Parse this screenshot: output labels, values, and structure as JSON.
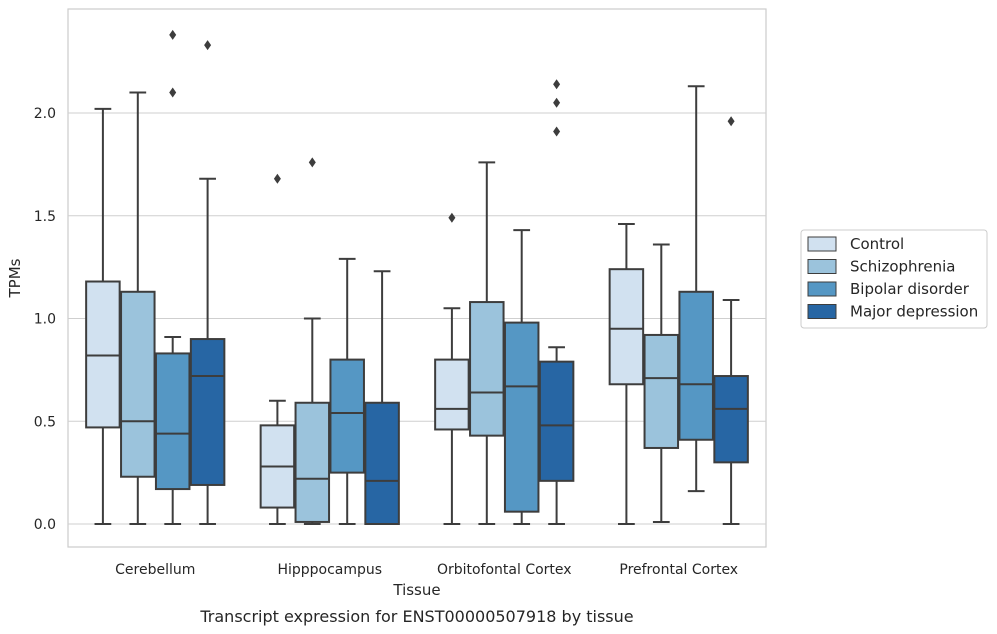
{
  "chart_data": {
    "type": "boxplot",
    "title": "",
    "caption": "Transcript expression for ENST00000507918 by tissue",
    "xlabel": "Tissue",
    "ylabel": "TPMs",
    "ylim": [
      -0.12,
      2.51
    ],
    "yticks": [
      0.0,
      0.5,
      1.0,
      1.5,
      2.0
    ],
    "ytick_labels": [
      "0.0",
      "0.5",
      "1.0",
      "1.5",
      "2.0"
    ],
    "grid": "horizontal",
    "legend_position": "right",
    "categories": [
      "Cerebellum",
      "Hipppocampus",
      "Orbitofontal Cortex",
      "Prefrontal Cortex"
    ],
    "series": [
      {
        "name": "Control",
        "color": "#d1e1f0",
        "boxes": [
          {
            "whisker_low": 0.0,
            "q1": 0.47,
            "median": 0.82,
            "q3": 1.18,
            "whisker_high": 2.02,
            "outliers": []
          },
          {
            "whisker_low": 0.0,
            "q1": 0.08,
            "median": 0.28,
            "q3": 0.48,
            "whisker_high": 0.6,
            "outliers": [
              1.68
            ]
          },
          {
            "whisker_low": 0.0,
            "q1": 0.46,
            "median": 0.56,
            "q3": 0.8,
            "whisker_high": 1.05,
            "outliers": [
              1.49
            ]
          },
          {
            "whisker_low": 0.0,
            "q1": 0.68,
            "median": 0.95,
            "q3": 1.24,
            "whisker_high": 1.46,
            "outliers": []
          }
        ]
      },
      {
        "name": "Schizophrenia",
        "color": "#9bc3dc",
        "boxes": [
          {
            "whisker_low": 0.0,
            "q1": 0.23,
            "median": 0.5,
            "q3": 1.13,
            "whisker_high": 2.1,
            "outliers": []
          },
          {
            "whisker_low": 0.0,
            "q1": 0.01,
            "median": 0.22,
            "q3": 0.59,
            "whisker_high": 1.0,
            "outliers": [
              1.76
            ]
          },
          {
            "whisker_low": 0.0,
            "q1": 0.43,
            "median": 0.64,
            "q3": 1.08,
            "whisker_high": 1.76,
            "outliers": []
          },
          {
            "whisker_low": 0.01,
            "q1": 0.37,
            "median": 0.71,
            "q3": 0.92,
            "whisker_high": 1.36,
            "outliers": []
          }
        ]
      },
      {
        "name": "Bipolar disorder",
        "color": "#5597c4",
        "boxes": [
          {
            "whisker_low": 0.0,
            "q1": 0.17,
            "median": 0.44,
            "q3": 0.83,
            "whisker_high": 0.91,
            "outliers": [
              2.1,
              2.38
            ]
          },
          {
            "whisker_low": 0.0,
            "q1": 0.25,
            "median": 0.54,
            "q3": 0.8,
            "whisker_high": 1.29,
            "outliers": []
          },
          {
            "whisker_low": 0.0,
            "q1": 0.06,
            "median": 0.67,
            "q3": 0.98,
            "whisker_high": 1.43,
            "outliers": []
          },
          {
            "whisker_low": 0.16,
            "q1": 0.41,
            "median": 0.68,
            "q3": 1.13,
            "whisker_high": 2.13,
            "outliers": []
          }
        ]
      },
      {
        "name": "Major depression",
        "color": "#2766a4",
        "boxes": [
          {
            "whisker_low": 0.0,
            "q1": 0.19,
            "median": 0.72,
            "q3": 0.9,
            "whisker_high": 1.68,
            "outliers": [
              2.33
            ]
          },
          {
            "whisker_low": 0.0,
            "q1": 0.0,
            "median": 0.21,
            "q3": 0.59,
            "whisker_high": 1.23,
            "outliers": []
          },
          {
            "whisker_low": 0.0,
            "q1": 0.21,
            "median": 0.48,
            "q3": 0.79,
            "whisker_high": 0.86,
            "outliers": [
              1.91,
              2.05,
              2.14
            ]
          },
          {
            "whisker_low": 0.0,
            "q1": 0.3,
            "median": 0.56,
            "q3": 0.72,
            "whisker_high": 1.09,
            "outliers": [
              1.96
            ]
          }
        ]
      }
    ]
  }
}
